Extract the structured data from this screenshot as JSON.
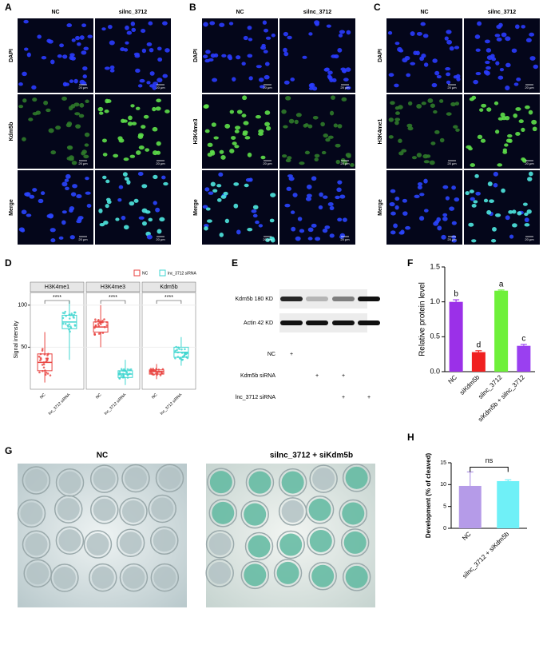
{
  "microscopy": [
    {
      "label": "A",
      "columns": [
        "NC",
        "silnc_3712"
      ],
      "rows": [
        "DAPI",
        "Kdm5b",
        "Merge"
      ]
    },
    {
      "label": "B",
      "columns": [
        "NC",
        "silnc_3712"
      ],
      "rows": [
        "DAPI",
        "H3K4me3",
        "Merge"
      ]
    },
    {
      "label": "C",
      "columns": [
        "NC",
        "silnc_3712"
      ],
      "rows": [
        "DAPI",
        "H3K4me1",
        "Merge"
      ]
    }
  ],
  "scale_bar": "20 μm",
  "western": {
    "label": "E",
    "bands": [
      "Kdm5b 180 KD",
      "Actin 42 KD"
    ],
    "conditions": [
      {
        "name": "NC",
        "marks": [
          "+",
          "",
          "",
          ""
        ]
      },
      {
        "name": "Kdm5b siRNA",
        "marks": [
          "",
          "+",
          "+",
          ""
        ]
      },
      {
        "name": "lnc_3712 siRNA",
        "marks": [
          "",
          "",
          "+",
          "+"
        ]
      }
    ]
  },
  "embryos": {
    "label": "G",
    "titles": [
      "NC",
      "silnc_3712 + siKdm5b"
    ]
  },
  "chart_data": [
    {
      "type": "box",
      "label": "D",
      "ylabel": "Signal intensity",
      "categories": [
        "H3K4me1",
        "H3K4me3",
        "Kdm5b"
      ],
      "x_labels": [
        "NC",
        "lnc_3712 siRNA"
      ],
      "ylim": [
        0,
        115
      ],
      "yticks": [
        50,
        100
      ],
      "significance": [
        "****",
        "****",
        "****"
      ],
      "series": [
        {
          "name": "NC",
          "color": "#e8423f",
          "boxes": [
            {
              "min": 8,
              "q1": 22,
              "median": 32,
              "q3": 42,
              "max": 68
            },
            {
              "min": 50,
              "q1": 68,
              "median": 74,
              "q3": 80,
              "max": 100
            },
            {
              "min": 12,
              "q1": 18,
              "median": 21,
              "q3": 23,
              "max": 30
            }
          ]
        },
        {
          "name": "lnc_3712 siRNA",
          "color": "#3fd6d0",
          "boxes": [
            {
              "min": 35,
              "q1": 72,
              "median": 80,
              "q3": 88,
              "max": 105
            },
            {
              "min": 5,
              "q1": 14,
              "median": 18,
              "q3": 22,
              "max": 35
            },
            {
              "min": 28,
              "q1": 38,
              "median": 44,
              "q3": 50,
              "max": 62
            }
          ]
        }
      ]
    },
    {
      "type": "bar",
      "label": "F",
      "ylabel": "Relative protein level",
      "categories": [
        "NC",
        "siKdm5b",
        "silnc_3712",
        "siKdm5b + silnc_3712"
      ],
      "values": [
        1.0,
        0.28,
        1.16,
        0.37
      ],
      "errors": [
        0.03,
        0.02,
        0.01,
        0.02
      ],
      "colors": [
        "#9b30e8",
        "#f02020",
        "#6ef03a",
        "#9a40f0"
      ],
      "annotations": [
        "b",
        "d",
        "a",
        "c"
      ],
      "ylim": [
        0,
        1.5
      ],
      "yticks": [
        {
          "value": 0,
          "label": "0.0"
        },
        0.5,
        {
          "value": 1,
          "label": "1.0"
        },
        1.5
      ]
    },
    {
      "type": "bar",
      "label": "H",
      "ylabel": "Development (% of cleaved)",
      "categories": [
        "NC",
        "silnc_3712 + siKdm5b"
      ],
      "values": [
        9.7,
        10.8
      ],
      "errors": [
        3.2,
        0.3
      ],
      "colors": [
        "#b59be8",
        "#6ff0f7"
      ],
      "annotations": [
        "ns"
      ],
      "ylim": [
        0,
        15
      ],
      "yticks": [
        0,
        5,
        10,
        15
      ]
    }
  ]
}
